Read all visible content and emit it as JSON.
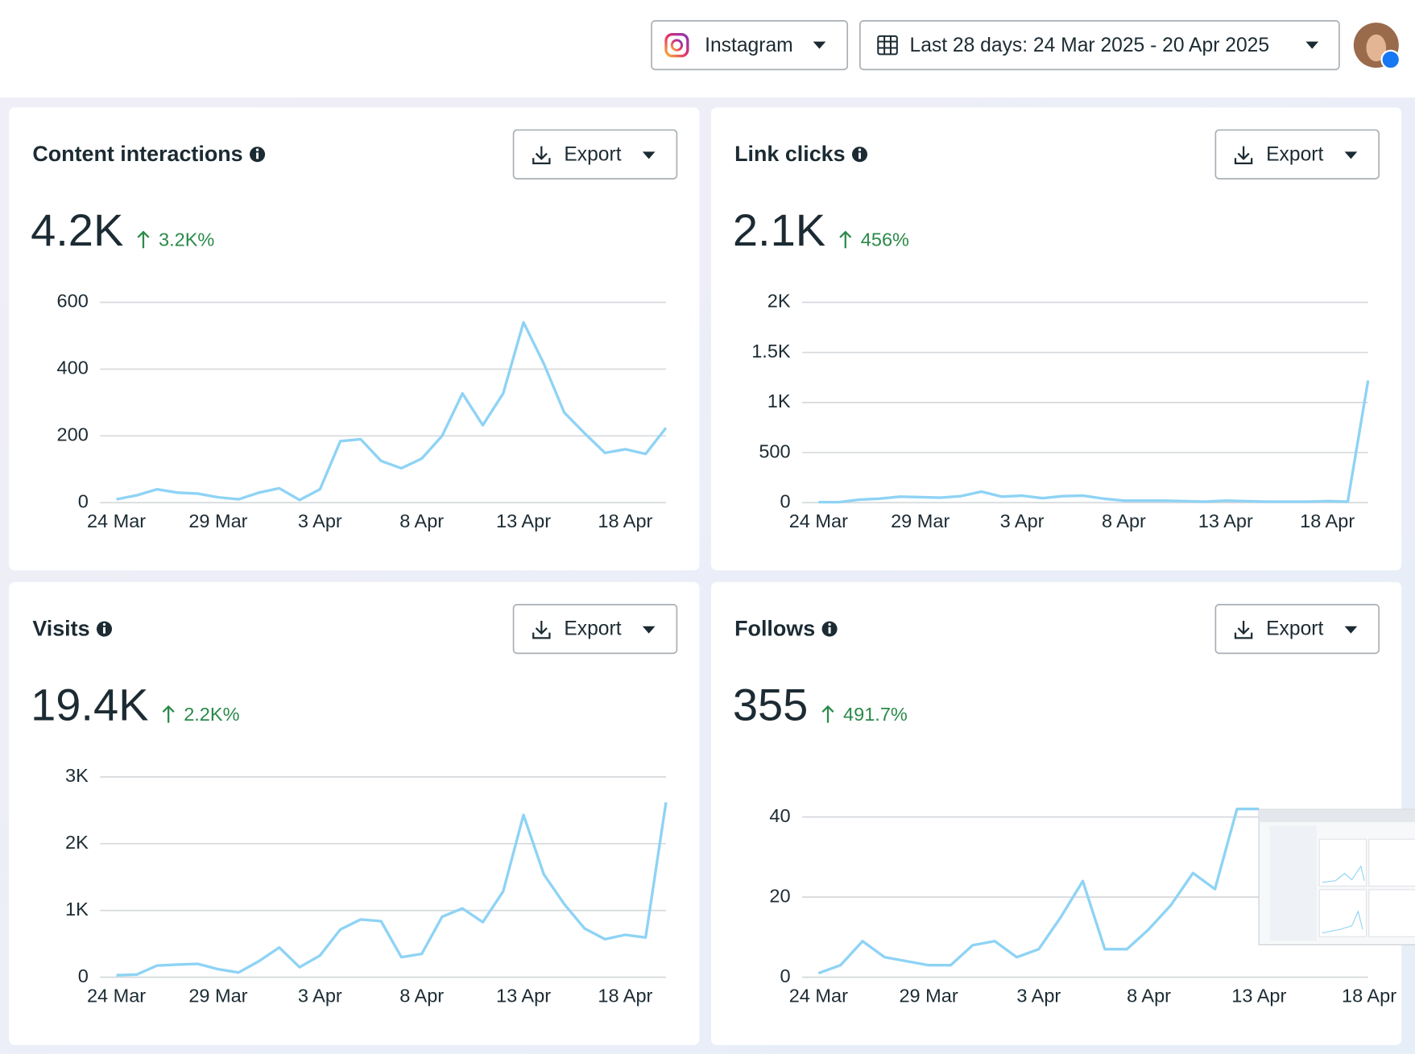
{
  "header": {
    "platform": "Instagram",
    "date_range": "Last 28 days: 24 Mar 2025 - 20 Apr 2025"
  },
  "chart_data": [
    {
      "type": "line",
      "title": "Content interactions",
      "total": "4.2K",
      "change": "3.2K%",
      "export_label": "Export",
      "categories": [
        "24 Mar",
        null,
        null,
        null,
        null,
        "29 Mar",
        null,
        null,
        null,
        null,
        "3 Apr",
        null,
        null,
        null,
        null,
        "8 Apr",
        null,
        null,
        null,
        null,
        "13 Apr",
        null,
        null,
        null,
        null,
        "18 Apr",
        null,
        null
      ],
      "series": [
        {
          "name": "Content interactions",
          "color": "#8ed3f5",
          "values": [
            10,
            22,
            40,
            30,
            27,
            16,
            10,
            30,
            43,
            8,
            40,
            184,
            190,
            125,
            103,
            132,
            200,
            327,
            232,
            327,
            540,
            416,
            270,
            208,
            149,
            160,
            146,
            224
          ]
        }
      ],
      "ylim": [
        0,
        600
      ],
      "yticks": [
        0,
        200,
        400,
        600
      ],
      "grid": true
    },
    {
      "type": "line",
      "title": "Link clicks",
      "total": "2.1K",
      "change": "456%",
      "export_label": "Export",
      "categories": [
        "24 Mar",
        null,
        null,
        null,
        null,
        "29 Mar",
        null,
        null,
        null,
        null,
        "3 Apr",
        null,
        null,
        null,
        null,
        "8 Apr",
        null,
        null,
        null,
        null,
        "13 Apr",
        null,
        null,
        null,
        null,
        "18 Apr",
        null,
        null
      ],
      "series": [
        {
          "name": "Link clicks",
          "color": "#8ed3f5",
          "values": [
            5,
            5,
            30,
            40,
            60,
            55,
            50,
            65,
            110,
            60,
            70,
            45,
            65,
            70,
            40,
            20,
            20,
            20,
            15,
            10,
            20,
            15,
            10,
            10,
            10,
            15,
            10,
            1220
          ]
        }
      ],
      "ylim": [
        0,
        2000
      ],
      "yticks": [
        0,
        500,
        {
          "value": 1000,
          "label": "1K"
        },
        {
          "value": 1500,
          "label": "1.5K"
        },
        {
          "value": 2000,
          "label": "2K"
        }
      ],
      "grid": true
    },
    {
      "type": "line",
      "title": "Visits",
      "total": "19.4K",
      "change": "2.2K%",
      "export_label": "Export",
      "categories": [
        "24 Mar",
        null,
        null,
        null,
        null,
        "29 Mar",
        null,
        null,
        null,
        null,
        "3 Apr",
        null,
        null,
        null,
        null,
        "8 Apr",
        null,
        null,
        null,
        null,
        "13 Apr",
        null,
        null,
        null,
        null,
        "18 Apr",
        null,
        null
      ],
      "series": [
        {
          "name": "Visits",
          "color": "#8ed3f5",
          "values": [
            30,
            40,
            175,
            190,
            200,
            120,
            70,
            240,
            445,
            150,
            325,
            715,
            865,
            840,
            300,
            350,
            905,
            1030,
            825,
            1285,
            2430,
            1540,
            1095,
            730,
            570,
            635,
            595,
            2620
          ]
        }
      ],
      "ylim": [
        0,
        3000
      ],
      "yticks": [
        0,
        {
          "value": 1000,
          "label": "1K"
        },
        {
          "value": 2000,
          "label": "2K"
        },
        {
          "value": 3000,
          "label": "3K"
        }
      ],
      "grid": true
    },
    {
      "type": "line",
      "title": "Follows",
      "total": "355",
      "change": "491.7%",
      "export_label": "Export",
      "categories": [
        "24 Mar",
        null,
        null,
        null,
        null,
        "29 Mar",
        null,
        null,
        null,
        null,
        "3 Apr",
        null,
        null,
        null,
        null,
        "8 Apr",
        null,
        null,
        null,
        null,
        "13 Apr",
        null,
        null,
        null,
        null,
        "18 Apr",
        null,
        null
      ],
      "series": [
        {
          "name": "Follows",
          "color": "#8ed3f5",
          "values": [
            1,
            3,
            9,
            5,
            4,
            3,
            3,
            8,
            9,
            5,
            7,
            15,
            24,
            7,
            7,
            12,
            18,
            26,
            22,
            42,
            42,
            null,
            null,
            null,
            null,
            null,
            null,
            null
          ]
        }
      ],
      "ylim": [
        0,
        50
      ],
      "yticks": [
        0,
        20,
        40
      ],
      "grid": true
    }
  ]
}
